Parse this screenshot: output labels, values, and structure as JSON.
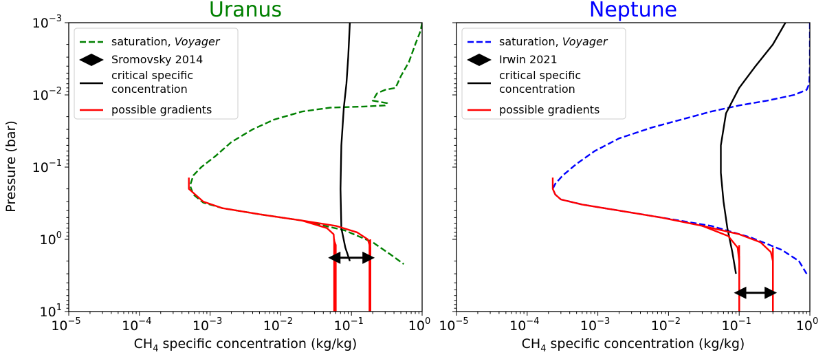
{
  "figure": {
    "y_axis_label": "Pressure (bar)",
    "x_axis_label_prefix": "CH",
    "x_axis_label_subscript": "4",
    "x_axis_label_suffix": " specific concentration (kg/kg)"
  },
  "chart_data": [
    {
      "type": "line",
      "title": "Uranus",
      "title_color": "#008000",
      "xlabel": "CH4 specific concentration (kg/kg)",
      "ylabel": "Pressure (bar)",
      "xscale": "log",
      "yscale": "log",
      "y_inverted": true,
      "xlim": [
        1e-05,
        1
      ],
      "ylim": [
        10,
        0.001
      ],
      "x_ticks": [
        1e-05,
        0.0001,
        0.001,
        0.01,
        0.1,
        1
      ],
      "x_tick_labels": [
        [
          "10",
          "−5"
        ],
        [
          "10",
          "−4"
        ],
        [
          "10",
          "−3"
        ],
        [
          "10",
          "−2"
        ],
        [
          "10",
          "−1"
        ],
        [
          "10",
          "0"
        ]
      ],
      "y_ticks": [
        0.001,
        0.01,
        0.1,
        1,
        10
      ],
      "y_tick_labels": [
        [
          "10",
          "−3"
        ],
        [
          "10",
          "−2"
        ],
        [
          "10",
          "−1"
        ],
        [
          "10",
          "0"
        ],
        [
          "10",
          "1"
        ]
      ],
      "legend_position": "top-left",
      "legend": [
        {
          "label": "saturation, ",
          "label_italic": "Voyager",
          "kind": "dashed",
          "color": "#008000"
        },
        {
          "label": "Sromovsky 2014",
          "label_italic": "",
          "kind": "arrow",
          "color": "#000000"
        },
        {
          "label": "critical specific",
          "label2": "concentration",
          "label_italic": "",
          "kind": "line",
          "color": "#000000"
        },
        {
          "label": "possible gradients",
          "label_italic": "",
          "kind": "line",
          "color": "#ff0000"
        }
      ],
      "series": [
        {
          "name": "saturation, Voyager",
          "style": "dashed",
          "color": "#008000",
          "points": [
            [
              1.0,
              0.001
            ],
            [
              0.95,
              0.0013
            ],
            [
              0.8,
              0.002
            ],
            [
              0.65,
              0.0035
            ],
            [
              0.5,
              0.0055
            ],
            [
              0.42,
              0.008
            ],
            [
              0.3,
              0.0085
            ],
            [
              0.23,
              0.0095
            ],
            [
              0.2,
              0.012
            ],
            [
              0.32,
              0.013
            ],
            [
              0.3,
              0.014
            ],
            [
              0.15,
              0.0145
            ],
            [
              0.05,
              0.015
            ],
            [
              0.02,
              0.017
            ],
            [
              0.008,
              0.022
            ],
            [
              0.004,
              0.03
            ],
            [
              0.002,
              0.045
            ],
            [
              0.0012,
              0.07
            ],
            [
              0.00075,
              0.1
            ],
            [
              0.00058,
              0.13
            ],
            [
              0.00052,
              0.18
            ],
            [
              0.00058,
              0.24
            ],
            [
              0.0008,
              0.31
            ],
            [
              0.0015,
              0.37
            ],
            [
              0.005,
              0.45
            ],
            [
              0.02,
              0.55
            ],
            [
              0.08,
              0.75
            ],
            [
              0.2,
              1.1
            ],
            [
              0.35,
              1.6
            ],
            [
              0.55,
              2.2
            ]
          ]
        },
        {
          "name": "critical specific concentration",
          "style": "solid",
          "color": "#000000",
          "points": [
            [
              0.095,
              0.001
            ],
            [
              0.09,
              0.003
            ],
            [
              0.085,
              0.007
            ],
            [
              0.078,
              0.015
            ],
            [
              0.072,
              0.05
            ],
            [
              0.07,
              0.2
            ],
            [
              0.072,
              0.7
            ],
            [
              0.082,
              1.3
            ],
            [
              0.095,
              2.0
            ]
          ]
        },
        {
          "name": "possible gradient",
          "style": "solid",
          "color": "#ff0000",
          "points": [
            [
              0.0005,
              0.14
            ],
            [
              0.0005,
              0.2
            ],
            [
              0.0008,
              0.3
            ],
            [
              0.0015,
              0.37
            ],
            [
              0.005,
              0.45
            ],
            [
              0.02,
              0.55
            ],
            [
              0.045,
              0.7
            ],
            [
              0.056,
              0.85
            ],
            [
              0.057,
              1.1
            ],
            [
              0.057,
              10
            ]
          ]
        },
        {
          "name": "possible gradient",
          "style": "solid",
          "color": "#ff0000",
          "points": [
            [
              0.02,
              0.55
            ],
            [
              0.06,
              0.65
            ],
            [
              0.12,
              0.8
            ],
            [
              0.17,
              1.0
            ],
            [
              0.185,
              1.3
            ],
            [
              0.185,
              10
            ]
          ]
        },
        {
          "name": "possible gradient",
          "style": "solid",
          "color": "#ff0000",
          "points": [
            [
              0.057,
              1.05
            ],
            [
              0.06,
              1.2
            ],
            [
              0.06,
              10
            ]
          ]
        },
        {
          "name": "possible gradient",
          "style": "solid",
          "color": "#ff0000",
          "points": [
            [
              0.185,
              1.05
            ],
            [
              0.18,
              1.2
            ],
            [
              0.18,
              10
            ]
          ]
        }
      ],
      "vlines": [
        {
          "x": 0.057,
          "y_from": 1.0,
          "y_to": 10,
          "color": "#ff0000"
        },
        {
          "x": 0.185,
          "y_from": 1.0,
          "y_to": 10,
          "color": "#ff0000"
        }
      ],
      "arrow": {
        "name": "Sromovsky 2014",
        "x_from": 0.05,
        "x_to": 0.2,
        "y": 1.8,
        "color": "#000000"
      }
    },
    {
      "type": "line",
      "title": "Neptune",
      "title_color": "#0000ff",
      "xlabel": "CH4 specific concentration (kg/kg)",
      "ylabel": "",
      "xscale": "log",
      "yscale": "log",
      "y_inverted": true,
      "xlim": [
        1e-05,
        1
      ],
      "ylim": [
        10,
        0.001
      ],
      "x_ticks": [
        1e-05,
        0.0001,
        0.001,
        0.01,
        0.1,
        1
      ],
      "x_tick_labels": [
        [
          "10",
          "−5"
        ],
        [
          "10",
          "−4"
        ],
        [
          "10",
          "−3"
        ],
        [
          "10",
          "−2"
        ],
        [
          "10",
          "−1"
        ],
        [
          "10",
          "0"
        ]
      ],
      "y_ticks": [
        0.001,
        0.01,
        0.1,
        1,
        10
      ],
      "y_tick_labels": [],
      "legend_position": "top-left",
      "legend": [
        {
          "label": "saturation, ",
          "label_italic": "Voyager",
          "kind": "dashed",
          "color": "#0000ff"
        },
        {
          "label": "Irwin 2021",
          "label_italic": "",
          "kind": "arrow",
          "color": "#000000"
        },
        {
          "label": "critical specific",
          "label2": "concentration",
          "label_italic": "",
          "kind": "line",
          "color": "#000000"
        },
        {
          "label": "possible gradients",
          "label_italic": "",
          "kind": "line",
          "color": "#ff0000"
        }
      ],
      "series": [
        {
          "name": "saturation, Voyager",
          "style": "dashed",
          "color": "#0000ff",
          "points": [
            [
              1.0,
              0.001
            ],
            [
              1.0,
              0.004
            ],
            [
              0.98,
              0.007
            ],
            [
              0.9,
              0.0085
            ],
            [
              0.6,
              0.01
            ],
            [
              0.25,
              0.012
            ],
            [
              0.1,
              0.014
            ],
            [
              0.04,
              0.017
            ],
            [
              0.015,
              0.022
            ],
            [
              0.006,
              0.028
            ],
            [
              0.002,
              0.04
            ],
            [
              0.0009,
              0.06
            ],
            [
              0.0005,
              0.09
            ],
            [
              0.00032,
              0.13
            ],
            [
              0.00025,
              0.17
            ],
            [
              0.00023,
              0.2
            ],
            [
              0.00025,
              0.24
            ],
            [
              0.0003,
              0.28
            ],
            [
              0.0006,
              0.33
            ],
            [
              0.002,
              0.4
            ],
            [
              0.008,
              0.5
            ],
            [
              0.04,
              0.65
            ],
            [
              0.15,
              0.95
            ],
            [
              0.4,
              1.4
            ],
            [
              0.7,
              2.0
            ],
            [
              0.9,
              3.0
            ]
          ]
        },
        {
          "name": "critical specific concentration",
          "style": "solid",
          "color": "#000000",
          "points": [
            [
              0.45,
              0.001
            ],
            [
              0.3,
              0.002
            ],
            [
              0.17,
              0.004
            ],
            [
              0.1,
              0.008
            ],
            [
              0.065,
              0.018
            ],
            [
              0.055,
              0.05
            ],
            [
              0.055,
              0.12
            ],
            [
              0.06,
              0.3
            ],
            [
              0.068,
              0.7
            ],
            [
              0.08,
              1.5
            ],
            [
              0.09,
              3.0
            ]
          ]
        },
        {
          "name": "possible gradient",
          "style": "solid",
          "color": "#ff0000",
          "points": [
            [
              0.00023,
              0.14
            ],
            [
              0.00023,
              0.2
            ],
            [
              0.00025,
              0.24
            ],
            [
              0.0003,
              0.28
            ],
            [
              0.0006,
              0.33
            ],
            [
              0.002,
              0.4
            ],
            [
              0.008,
              0.5
            ],
            [
              0.03,
              0.65
            ],
            [
              0.07,
              0.9
            ],
            [
              0.095,
              1.3
            ],
            [
              0.1,
              2.0
            ],
            [
              0.1,
              10
            ]
          ]
        },
        {
          "name": "possible gradient",
          "style": "solid",
          "color": "#ff0000",
          "points": [
            [
              0.03,
              0.65
            ],
            [
              0.1,
              0.85
            ],
            [
              0.2,
              1.1
            ],
            [
              0.28,
              1.5
            ],
            [
              0.3,
              2.0
            ],
            [
              0.3,
              10
            ]
          ]
        },
        {
          "name": "possible gradient",
          "style": "solid",
          "color": "#ff0000",
          "points": [
            [
              0.1,
              1.7
            ],
            [
              0.1,
              10
            ]
          ]
        },
        {
          "name": "possible gradient",
          "style": "solid",
          "color": "#ff0000",
          "points": [
            [
              0.3,
              1.7
            ],
            [
              0.3,
              10
            ]
          ]
        }
      ],
      "vlines": [
        {
          "x": 0.1,
          "y_from": 1.2,
          "y_to": 10,
          "color": "#ff0000"
        },
        {
          "x": 0.3,
          "y_from": 1.3,
          "y_to": 10,
          "color": "#ff0000"
        }
      ],
      "arrow": {
        "name": "Irwin 2021",
        "x_from": 0.09,
        "x_to": 0.32,
        "y": 5.5,
        "color": "#000000"
      }
    }
  ]
}
